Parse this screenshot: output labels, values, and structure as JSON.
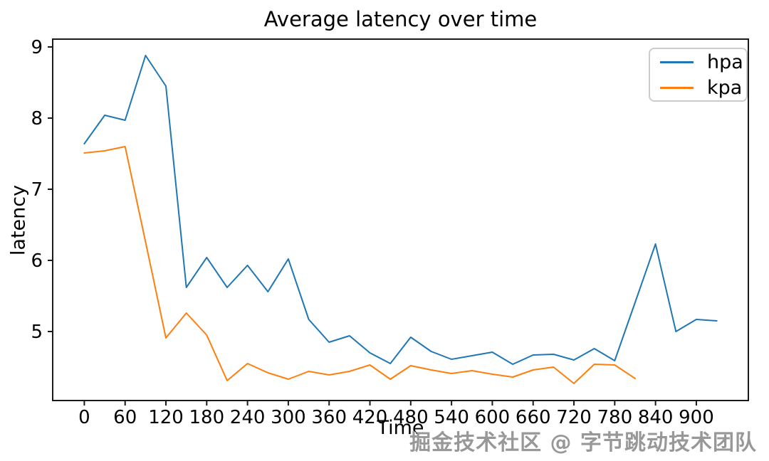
{
  "watermark": "掘金技术社区 @ 字节跳动技术团队",
  "chart_data": {
    "type": "line",
    "title": "Average latency over time",
    "xlabel": "Time",
    "ylabel": "latency",
    "xlim": [
      -46.5,
      976.5
    ],
    "ylim": [
      4.03,
      9.11
    ],
    "xticks": [
      0,
      60,
      120,
      180,
      240,
      300,
      360,
      420,
      480,
      540,
      600,
      660,
      720,
      780,
      840,
      900
    ],
    "yticks": [
      5,
      6,
      7,
      8,
      9
    ],
    "grid": false,
    "legend_position": "upper right",
    "axis_color": "#1a1a1a",
    "series": [
      {
        "name": "hpa",
        "color": "#1f77b4",
        "x": [
          0,
          30,
          60,
          90,
          120,
          150,
          180,
          210,
          240,
          270,
          300,
          330,
          360,
          390,
          420,
          450,
          480,
          510,
          540,
          570,
          600,
          630,
          660,
          690,
          720,
          750,
          780,
          810,
          840,
          870,
          900,
          930
        ],
        "values": [
          7.64,
          8.04,
          7.97,
          8.88,
          8.45,
          5.62,
          6.04,
          5.62,
          5.93,
          5.56,
          6.02,
          5.17,
          4.85,
          4.94,
          4.7,
          4.55,
          4.92,
          4.72,
          4.61,
          4.66,
          4.71,
          4.54,
          4.67,
          4.68,
          4.6,
          4.76,
          4.59,
          5.41,
          6.23,
          5.0,
          5.17,
          5.15
        ]
      },
      {
        "name": "kpa",
        "color": "#ff7f0e",
        "x": [
          0,
          30,
          60,
          90,
          120,
          150,
          180,
          210,
          240,
          270,
          300,
          330,
          360,
          390,
          420,
          450,
          480,
          510,
          540,
          570,
          600,
          630,
          660,
          690,
          720,
          750,
          780,
          810
        ],
        "values": [
          7.51,
          7.54,
          7.6,
          6.26,
          4.91,
          5.26,
          4.95,
          4.31,
          4.55,
          4.42,
          4.33,
          4.44,
          4.39,
          4.44,
          4.53,
          4.33,
          4.52,
          4.46,
          4.41,
          4.45,
          4.4,
          4.36,
          4.46,
          4.5,
          4.27,
          4.54,
          4.53,
          4.34
        ]
      }
    ]
  }
}
